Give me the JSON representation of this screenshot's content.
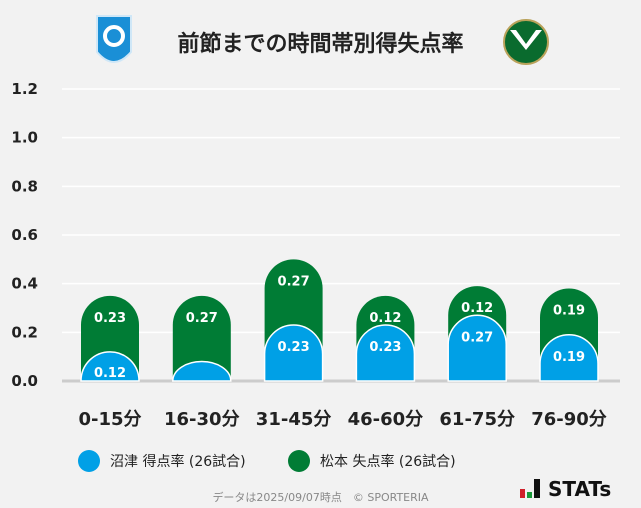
{
  "title": "前節までの時間帯別得失点率",
  "home_logo": {
    "text": "azul claro 1990",
    "color": "#1a8fd6"
  },
  "away_logo": {
    "text": "Matsumoto Yamaga",
    "color": "#0a6b2e"
  },
  "chart_data": {
    "type": "bar",
    "stacked": true,
    "categories": [
      "0-15分",
      "16-30分",
      "31-45分",
      "46-60分",
      "61-75分",
      "76-90分"
    ],
    "series": [
      {
        "name": "沼津 得点率 (26試合)",
        "color": "#00a0e6",
        "values": [
          0.12,
          0.08,
          0.23,
          0.23,
          0.27,
          0.19
        ],
        "labels": [
          "0.12",
          null,
          "0.23",
          "0.23",
          "0.27",
          "0.19"
        ]
      },
      {
        "name": "松本 失点率 (26試合)",
        "color": "#007c35",
        "values": [
          0.23,
          0.27,
          0.27,
          0.12,
          0.12,
          0.19
        ],
        "labels": [
          "0.23",
          "0.27",
          "0.27",
          "0.12",
          "0.12",
          "0.19"
        ]
      }
    ],
    "yticks": [
      "0.0",
      "0.2",
      "0.4",
      "0.6",
      "0.8",
      "1.0",
      "1.2"
    ],
    "ylim": [
      0,
      1.2
    ],
    "grid": true,
    "legend": "bottom"
  },
  "footer": "データは2025/09/07時点　© SPORTERIA",
  "brand": "STATs"
}
